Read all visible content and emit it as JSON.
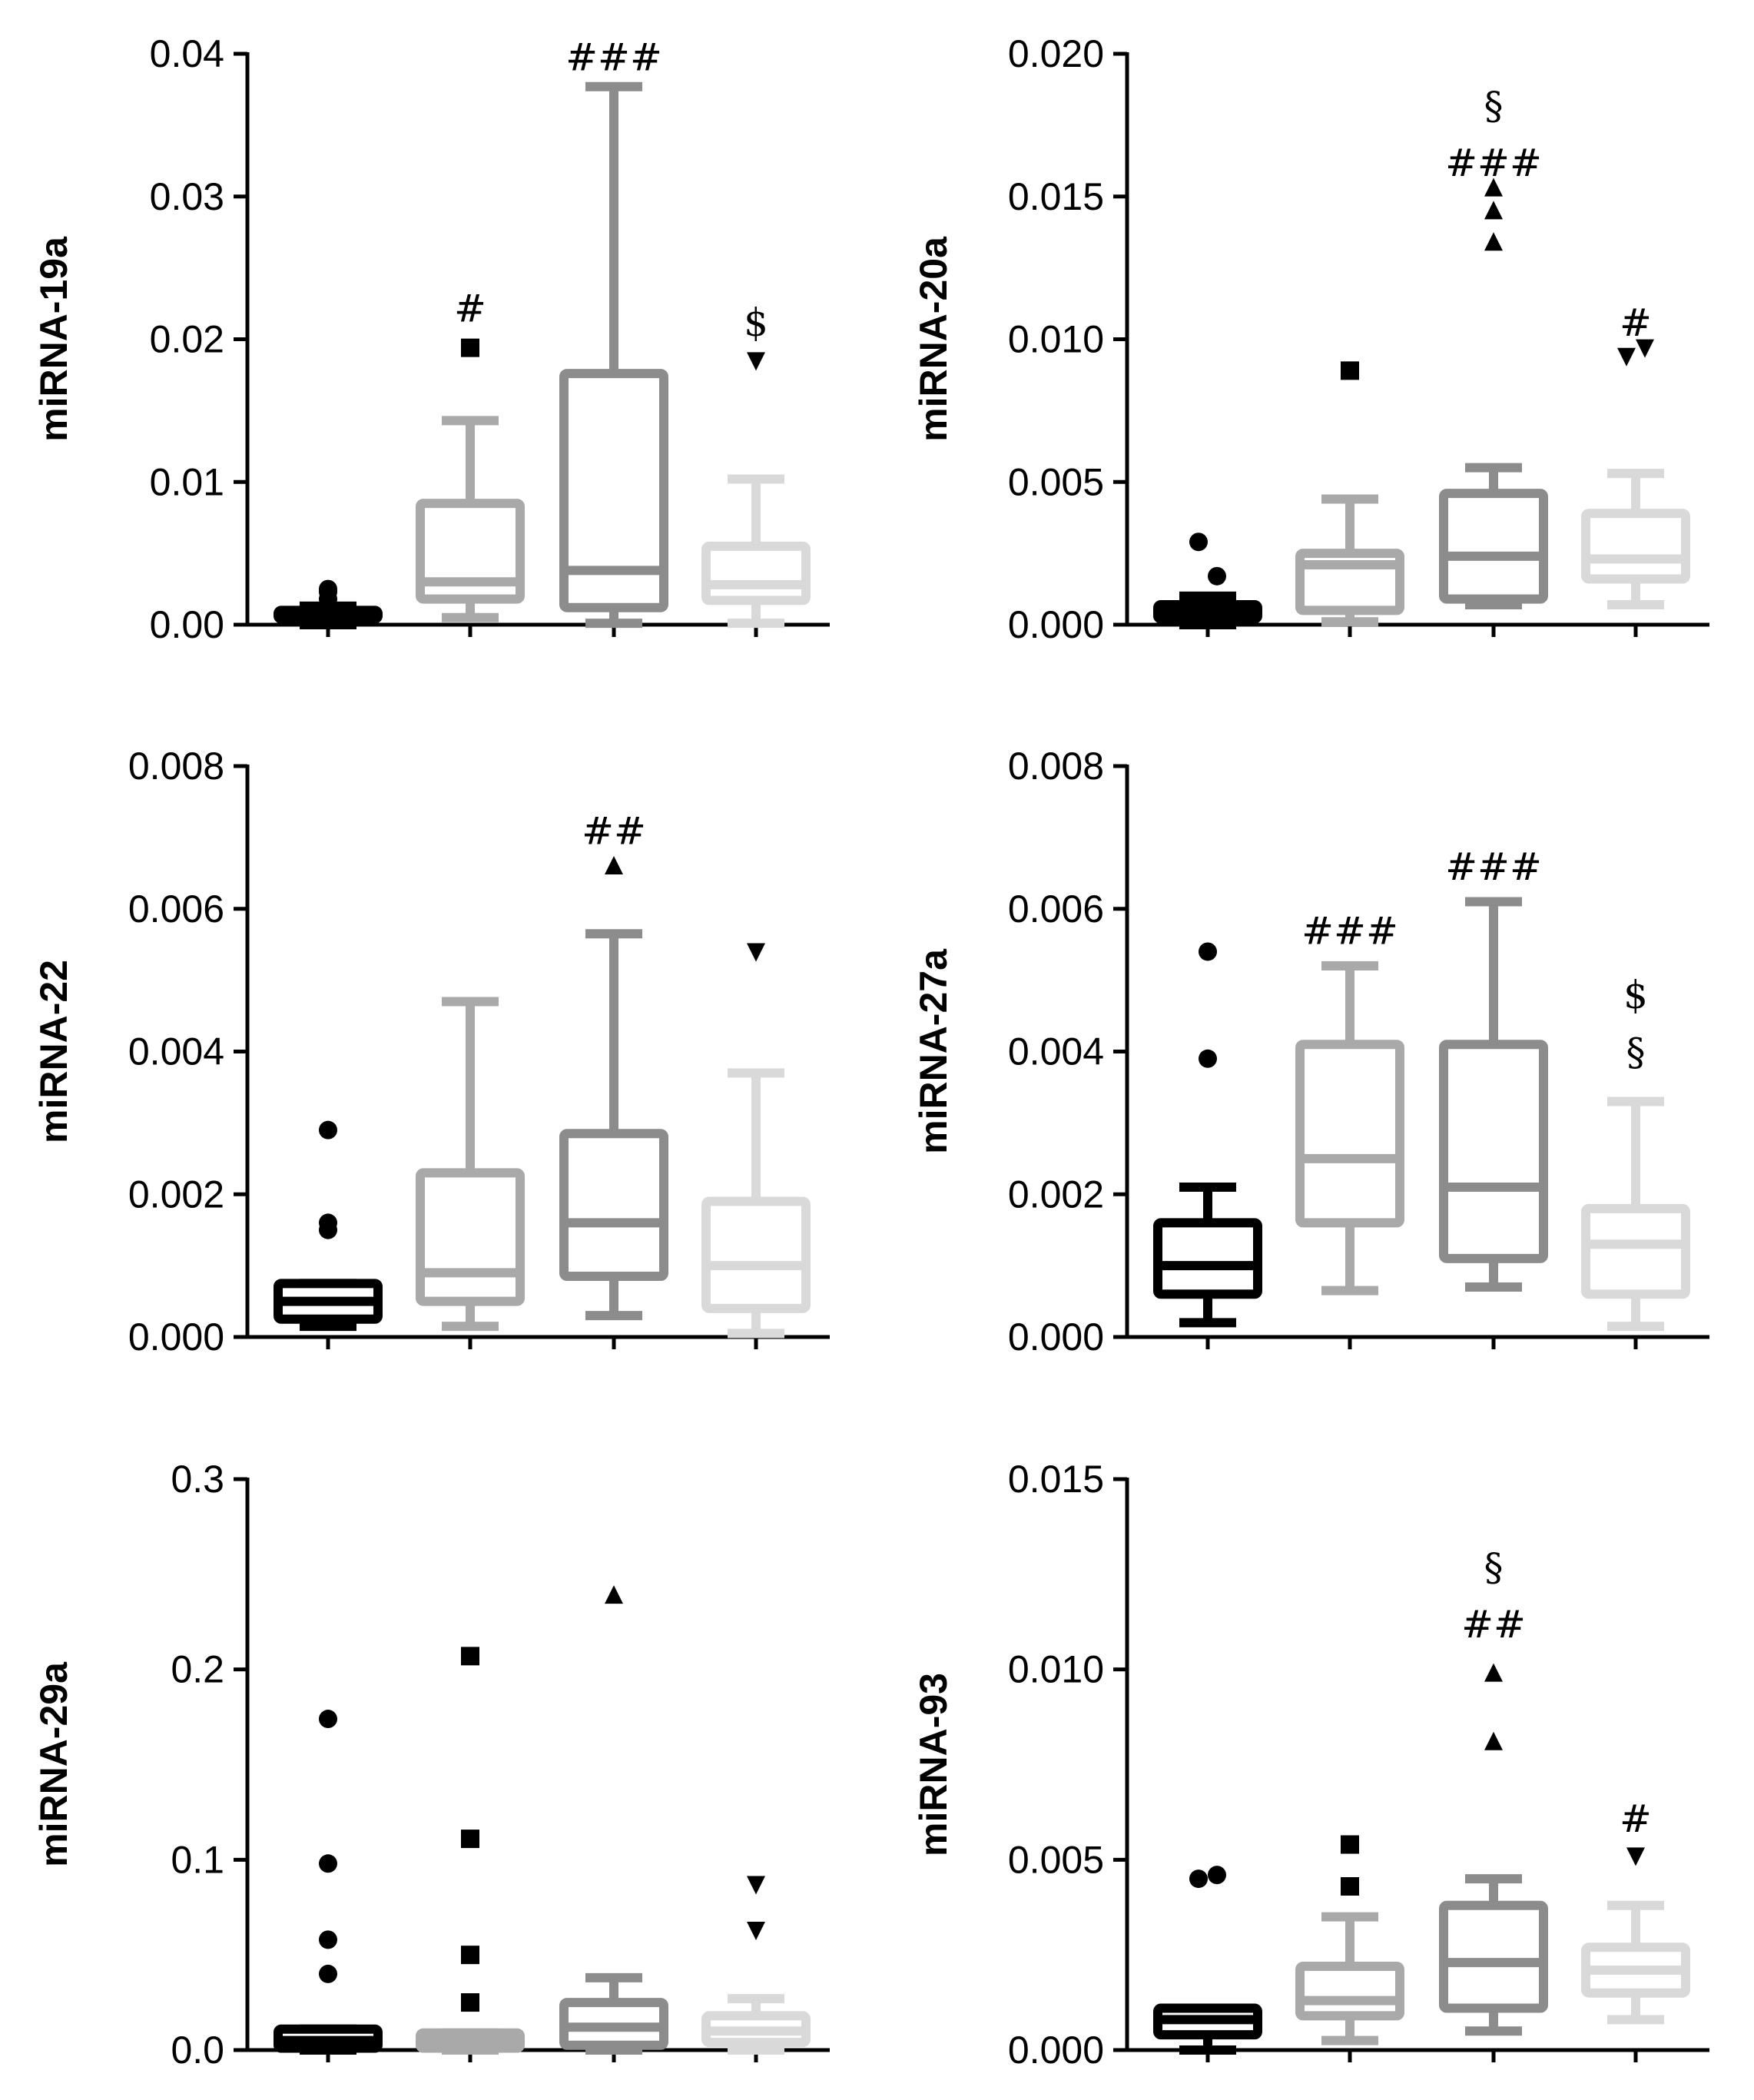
{
  "colors": {
    "group1": "#000000",
    "group2": "#a9a9a9",
    "group3": "#8c8c8c",
    "group4": "#d9d9d9",
    "outlier": "#000000",
    "axis": "#000000"
  },
  "chart_data": [
    {
      "type": "box",
      "ylabel": "miRNA-19a",
      "ylim": [
        0,
        0.04
      ],
      "yticks": [
        "0.00",
        "0.01",
        "0.02",
        "0.03",
        "0.04"
      ],
      "boxes": [
        {
          "group": 1,
          "whisker_low": 0.0,
          "q1": 0.0004,
          "median": 0.0007,
          "q3": 0.001,
          "whisker_high": 0.0013
        },
        {
          "group": 2,
          "whisker_low": 0.0005,
          "q1": 0.0018,
          "median": 0.003,
          "q3": 0.0085,
          "whisker_high": 0.0143
        },
        {
          "group": 3,
          "whisker_low": 0.0001,
          "q1": 0.0012,
          "median": 0.0038,
          "q3": 0.0176,
          "whisker_high": 0.0377
        },
        {
          "group": 4,
          "whisker_low": 0.0001,
          "q1": 0.0017,
          "median": 0.0028,
          "q3": 0.0055,
          "whisker_high": 0.0102
        }
      ],
      "outliers": [
        {
          "group": 1,
          "values": [
            0.0025,
            0.0023,
            0.0018
          ]
        },
        {
          "group": 2,
          "values": [
            0.0194
          ]
        },
        {
          "group": 4,
          "values": [
            0.0185
          ]
        }
      ],
      "annotations": [
        {
          "group": 2,
          "y": 0.0222,
          "text": "#"
        },
        {
          "group": 3,
          "y": 0.0398,
          "text": "###"
        },
        {
          "group": 4,
          "y": 0.0212,
          "text": "$"
        }
      ]
    },
    {
      "type": "box",
      "ylabel": "miRNA-20a",
      "ylim": [
        0,
        0.02
      ],
      "yticks": [
        "0.000",
        "0.005",
        "0.010",
        "0.015",
        "0.020"
      ],
      "boxes": [
        {
          "group": 1,
          "whisker_low": 0.0,
          "q1": 0.0002,
          "median": 0.0004,
          "q3": 0.0007,
          "whisker_high": 0.001
        },
        {
          "group": 2,
          "whisker_low": 0.0001,
          "q1": 0.0005,
          "median": 0.0021,
          "q3": 0.0025,
          "whisker_high": 0.0044
        },
        {
          "group": 3,
          "whisker_low": 0.0007,
          "q1": 0.0009,
          "median": 0.0024,
          "q3": 0.0046,
          "whisker_high": 0.0055
        },
        {
          "group": 4,
          "whisker_low": 0.0007,
          "q1": 0.0016,
          "median": 0.0023,
          "q3": 0.0039,
          "whisker_high": 0.0053
        }
      ],
      "outliers": [
        {
          "group": 1,
          "values": [
            0.0029,
            0.0017
          ]
        },
        {
          "group": 2,
          "values": [
            0.0089
          ]
        },
        {
          "group": 3,
          "values": [
            0.0153,
            0.0145,
            0.0134
          ]
        },
        {
          "group": 4,
          "values": [
            0.0094,
            0.0097
          ]
        }
      ],
      "annotations": [
        {
          "group": 3,
          "y": 0.0182,
          "text": "§"
        },
        {
          "group": 3,
          "y": 0.0162,
          "text": "###"
        },
        {
          "group": 4,
          "y": 0.0106,
          "text": "#"
        }
      ]
    },
    {
      "type": "box",
      "ylabel": "miRNA-22",
      "ylim": [
        0,
        0.008
      ],
      "yticks": [
        "0.000",
        "0.002",
        "0.004",
        "0.006",
        "0.008"
      ],
      "boxes": [
        {
          "group": 1,
          "whisker_low": 0.00015,
          "q1": 0.00025,
          "median": 0.0005,
          "q3": 0.00075,
          "whisker_high": 0.00075
        },
        {
          "group": 2,
          "whisker_low": 0.00015,
          "q1": 0.0005,
          "median": 0.0009,
          "q3": 0.0023,
          "whisker_high": 0.0047
        },
        {
          "group": 3,
          "whisker_low": 0.0003,
          "q1": 0.00085,
          "median": 0.0016,
          "q3": 0.00285,
          "whisker_high": 0.00565
        },
        {
          "group": 4,
          "whisker_low": 5e-05,
          "q1": 0.0004,
          "median": 0.001,
          "q3": 0.0019,
          "whisker_high": 0.0037
        }
      ],
      "outliers": [
        {
          "group": 1,
          "values": [
            0.0029,
            0.0016,
            0.0015
          ]
        },
        {
          "group": 3,
          "values": [
            0.0066
          ]
        },
        {
          "group": 4,
          "values": [
            0.0054
          ]
        }
      ],
      "annotations": [
        {
          "group": 3,
          "y": 0.0071,
          "text": "##"
        }
      ]
    },
    {
      "type": "box",
      "ylabel": "miRNA-27a",
      "ylim": [
        0,
        0.008
      ],
      "yticks": [
        "0.000",
        "0.002",
        "0.004",
        "0.006",
        "0.008"
      ],
      "boxes": [
        {
          "group": 1,
          "whisker_low": 0.0002,
          "q1": 0.0006,
          "median": 0.001,
          "q3": 0.0016,
          "whisker_high": 0.0021
        },
        {
          "group": 2,
          "whisker_low": 0.00065,
          "q1": 0.0016,
          "median": 0.0025,
          "q3": 0.0041,
          "whisker_high": 0.0052
        },
        {
          "group": 3,
          "whisker_low": 0.0007,
          "q1": 0.0011,
          "median": 0.0021,
          "q3": 0.0041,
          "whisker_high": 0.0061
        },
        {
          "group": 4,
          "whisker_low": 0.00015,
          "q1": 0.0006,
          "median": 0.0013,
          "q3": 0.0018,
          "whisker_high": 0.0033
        }
      ],
      "outliers": [
        {
          "group": 1,
          "values": [
            0.0054,
            0.0039
          ]
        }
      ],
      "annotations": [
        {
          "group": 2,
          "y": 0.0057,
          "text": "###"
        },
        {
          "group": 3,
          "y": 0.0066,
          "text": "###"
        },
        {
          "group": 4,
          "y": 0.0048,
          "text": "$"
        },
        {
          "group": 4,
          "y": 0.004,
          "text": "§"
        }
      ]
    },
    {
      "type": "box",
      "ylabel": "miRNA-29a",
      "ylim": [
        0,
        0.3
      ],
      "yticks": [
        "0.0",
        "0.1",
        "0.2",
        "0.3"
      ],
      "boxes": [
        {
          "group": 1,
          "whisker_low": 0.0,
          "q1": 0.001,
          "median": 0.005,
          "q3": 0.011,
          "whisker_high": 0.011
        },
        {
          "group": 2,
          "whisker_low": 0.0,
          "q1": 0.001,
          "median": 0.005,
          "q3": 0.009,
          "whisker_high": 0.009
        },
        {
          "group": 3,
          "whisker_low": 0.0,
          "q1": 0.0025,
          "median": 0.012,
          "q3": 0.025,
          "whisker_high": 0.038
        },
        {
          "group": 4,
          "whisker_low": 0.0,
          "q1": 0.004,
          "median": 0.01,
          "q3": 0.018,
          "whisker_high": 0.027
        }
      ],
      "outliers": [
        {
          "group": 1,
          "values": [
            0.174,
            0.098,
            0.058,
            0.04
          ]
        },
        {
          "group": 2,
          "values": [
            0.207,
            0.111,
            0.05,
            0.025
          ]
        },
        {
          "group": 3,
          "values": [
            0.239
          ]
        },
        {
          "group": 4,
          "values": [
            0.087,
            0.063
          ]
        }
      ],
      "annotations": []
    },
    {
      "type": "box",
      "ylabel": "miRNA-93",
      "ylim": [
        0,
        0.015
      ],
      "yticks": [
        "0.000",
        "0.005",
        "0.010",
        "0.015"
      ],
      "boxes": [
        {
          "group": 1,
          "whisker_low": 0.0,
          "q1": 0.0004,
          "median": 0.0008,
          "q3": 0.0011,
          "whisker_high": 0.0011
        },
        {
          "group": 2,
          "whisker_low": 0.00025,
          "q1": 0.0009,
          "median": 0.0013,
          "q3": 0.0022,
          "whisker_high": 0.0035
        },
        {
          "group": 3,
          "whisker_low": 0.0005,
          "q1": 0.0011,
          "median": 0.0023,
          "q3": 0.0038,
          "whisker_high": 0.0045
        },
        {
          "group": 4,
          "whisker_low": 0.0008,
          "q1": 0.0015,
          "median": 0.0021,
          "q3": 0.0027,
          "whisker_high": 0.0038
        }
      ],
      "outliers": [
        {
          "group": 1,
          "values": [
            0.0045,
            0.0046
          ]
        },
        {
          "group": 2,
          "values": [
            0.0054,
            0.0043
          ]
        },
        {
          "group": 3,
          "values": [
            0.0099,
            0.0081
          ]
        },
        {
          "group": 4,
          "values": [
            0.0051
          ]
        }
      ],
      "annotations": [
        {
          "group": 3,
          "y": 0.0127,
          "text": "§"
        },
        {
          "group": 3,
          "y": 0.0112,
          "text": "##"
        },
        {
          "group": 4,
          "y": 0.0061,
          "text": "#"
        }
      ]
    }
  ]
}
